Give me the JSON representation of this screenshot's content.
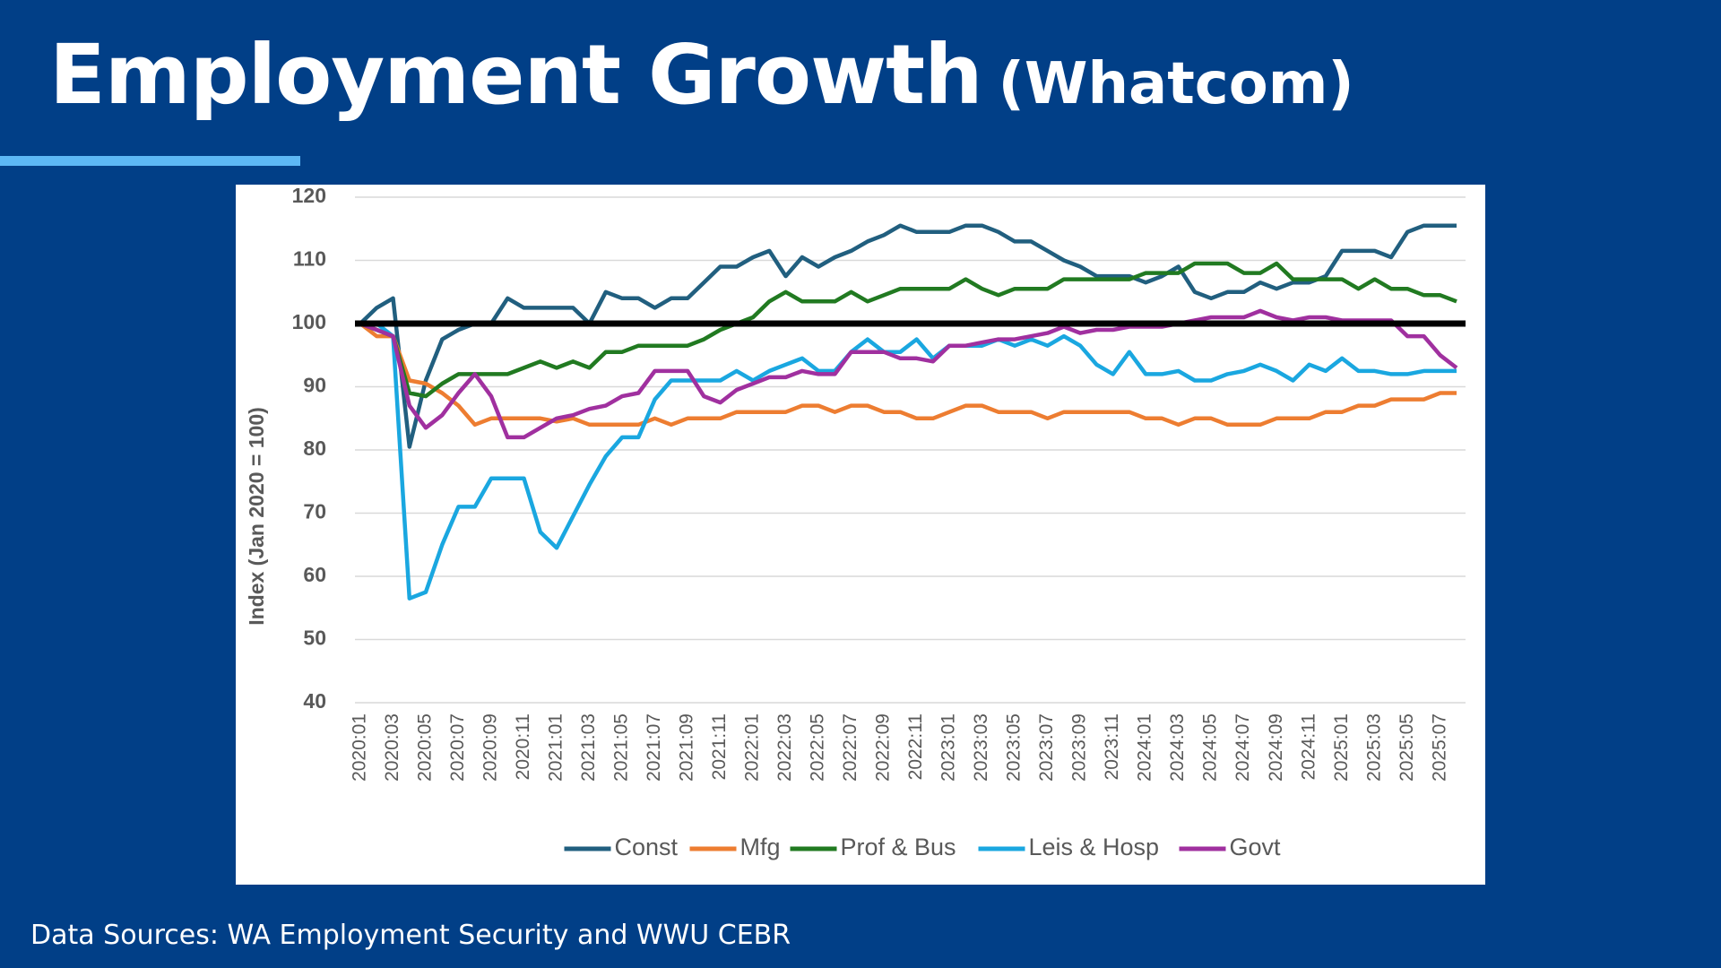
{
  "chart_data": {
    "type": "line",
    "title": "Employment Growth",
    "subtitle": "(Whatcom)",
    "source": "Data Sources: WA Employment Security and WWU CEBR",
    "y_label": "Index (Jan 2020 = 100)",
    "categories": [
      "2020:01",
      null,
      "2020:03",
      null,
      "2020:05",
      null,
      "2020:07",
      null,
      "2020:09",
      null,
      "2020:11",
      null,
      "2021:01",
      null,
      "2021:03",
      null,
      "2021:05",
      null,
      "2021:07",
      null,
      "2021:09",
      null,
      "2021:11",
      null,
      "2022:01",
      null,
      "2022:03",
      null,
      "2022:05",
      null,
      "2022:07",
      null,
      "2022:09",
      null,
      "2022:11",
      null,
      "2023:01",
      null,
      "2023:03",
      null,
      "2023:05",
      null,
      "2023:07",
      null,
      "2023:09",
      null,
      "2023:11",
      null,
      "2024:01",
      null,
      "2024:03",
      null,
      "2024:05",
      null,
      "2024:07",
      null,
      "2024:09",
      null,
      "2024:11",
      null,
      "2025:01",
      null,
      "2025:03",
      null,
      "2025:05",
      null,
      "2025:07",
      null
    ],
    "series": [
      {
        "name": "Const",
        "color": "#215f7f",
        "values": [
          100,
          102.5,
          104,
          80.5,
          91,
          97.5,
          99,
          100,
          100,
          104,
          102.5,
          102.5,
          102.5,
          102.5,
          100,
          105,
          104,
          104,
          102.5,
          104,
          104,
          106.5,
          109,
          109,
          110.5,
          111.5,
          107.5,
          110.5,
          109,
          110.5,
          111.5,
          113,
          114,
          115.5,
          114.5,
          114.5,
          114.5,
          115.5,
          115.5,
          114.5,
          113,
          113,
          111.5,
          110,
          109,
          107.5,
          107.5,
          107.5,
          106.5,
          107.5,
          109,
          105,
          104,
          105,
          105,
          106.5,
          105.5,
          106.5,
          106.5,
          107.5,
          111.5,
          111.5,
          111.5,
          110.5,
          114.5,
          115.5,
          115.5,
          115.5
        ]
      },
      {
        "name": "Mfg",
        "color": "#ed7d31",
        "values": [
          100,
          98,
          98,
          91,
          90.5,
          89,
          87,
          84,
          85,
          85,
          85,
          85,
          84.5,
          85,
          84,
          84,
          84,
          84,
          85,
          84,
          85,
          85,
          85,
          86,
          86,
          86,
          86,
          87,
          87,
          86,
          87,
          87,
          86,
          86,
          85,
          85,
          86,
          87,
          87,
          86,
          86,
          86,
          85,
          86,
          86,
          86,
          86,
          86,
          85,
          85,
          84,
          85,
          85,
          84,
          84,
          84,
          85,
          85,
          85,
          86,
          86,
          87,
          87,
          88,
          88,
          88,
          89,
          89
        ]
      },
      {
        "name": "Prof & Bus",
        "color": "#217a21",
        "values": [
          100,
          99,
          98,
          89,
          88.5,
          90.5,
          92,
          92,
          92,
          92,
          93,
          94,
          93,
          94,
          93,
          95.5,
          95.5,
          96.5,
          96.5,
          96.5,
          96.5,
          97.5,
          99,
          100,
          101,
          103.5,
          105,
          103.5,
          103.5,
          103.5,
          105,
          103.5,
          104.5,
          105.5,
          105.5,
          105.5,
          105.5,
          107,
          105.5,
          104.5,
          105.5,
          105.5,
          105.5,
          107,
          107,
          107,
          107,
          107,
          108,
          108,
          108,
          109.5,
          109.5,
          109.5,
          108,
          108,
          109.5,
          107,
          107,
          107,
          107,
          105.5,
          107,
          105.5,
          105.5,
          104.5,
          104.5,
          103.5
        ]
      },
      {
        "name": "Leis & Hosp",
        "color": "#1aa7e0",
        "values": [
          100,
          100,
          98,
          56.5,
          57.5,
          65,
          71,
          71,
          75.5,
          75.5,
          75.5,
          67,
          64.5,
          69.5,
          74.5,
          79,
          82,
          82,
          88,
          91,
          91,
          91,
          91,
          92.5,
          91,
          92.5,
          93.5,
          94.5,
          92.5,
          92.5,
          95.5,
          97.5,
          95.5,
          95.5,
          97.5,
          94.5,
          96.5,
          96.5,
          96.5,
          97.5,
          96.5,
          97.5,
          96.5,
          98,
          96.5,
          93.5,
          92,
          95.5,
          92,
          92,
          92.5,
          91,
          91,
          92,
          92.5,
          93.5,
          92.5,
          91,
          93.5,
          92.5,
          94.5,
          92.5,
          92.5,
          92,
          92,
          92.5,
          92.5,
          92.5
        ]
      },
      {
        "name": "Govt",
        "color": "#a0309f",
        "values": [
          100,
          99,
          98,
          87,
          83.5,
          85.5,
          89,
          92,
          88.5,
          82,
          82,
          83.5,
          85,
          85.5,
          86.5,
          87,
          88.5,
          89,
          92.5,
          92.5,
          92.5,
          88.5,
          87.5,
          89.5,
          90.5,
          91.5,
          91.5,
          92.5,
          92,
          92,
          95.5,
          95.5,
          95.5,
          94.5,
          94.5,
          94,
          96.5,
          96.5,
          97,
          97.5,
          97.5,
          98,
          98.5,
          99.5,
          98.5,
          99,
          99,
          99.5,
          99.5,
          99.5,
          100,
          100.5,
          101,
          101,
          101,
          102,
          101,
          100.5,
          101,
          101,
          100.5,
          100.5,
          100.5,
          100.5,
          98,
          98,
          95,
          93
        ]
      }
    ],
    "reference_line": 100,
    "reference_color": "#000000",
    "ylim": [
      40,
      120
    ],
    "yticks": [
      40,
      50,
      60,
      70,
      80,
      90,
      100,
      110,
      120
    ],
    "grid": true,
    "legend": "bottom"
  }
}
